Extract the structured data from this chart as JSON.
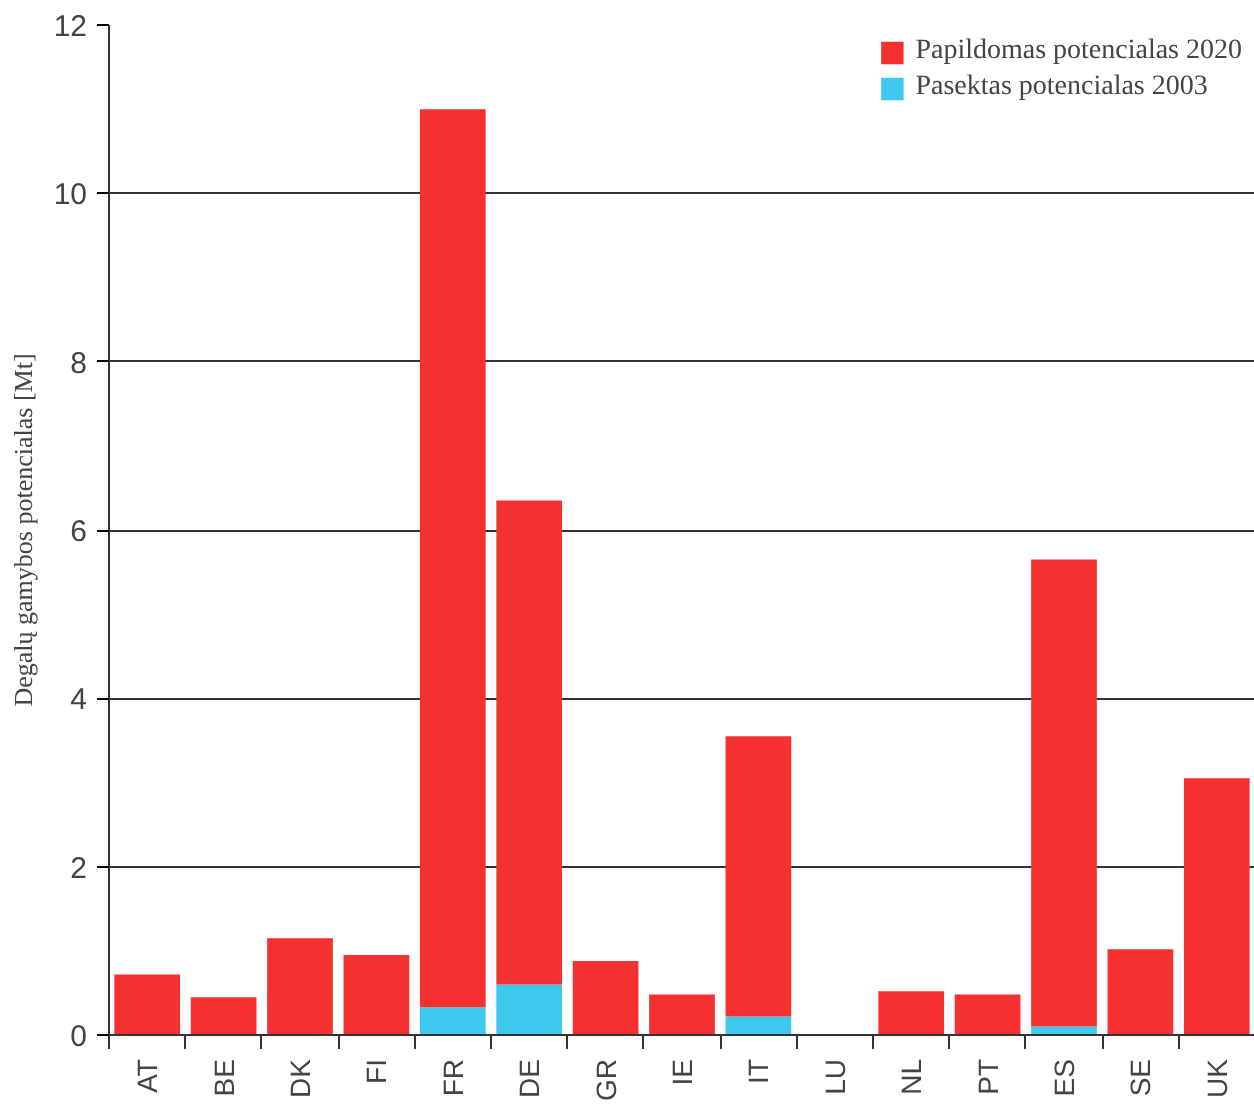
{
  "chart_data": {
    "type": "bar",
    "stacked": true,
    "ylabel": "Degalų gamybos potencialas [Mt]",
    "categories": [
      "AT",
      "BE",
      "DK",
      "FI",
      "FR",
      "DE",
      "GR",
      "IE",
      "IT",
      "LU",
      "NL",
      "PT",
      "ES",
      "SE",
      "UK"
    ],
    "series": [
      {
        "name": "Pasektas potencialas 2003",
        "color": "#3ec8ee",
        "values": [
          0,
          0,
          0,
          0,
          0.33,
          0.6,
          0,
          0,
          0.22,
          0,
          0,
          0,
          0.1,
          0,
          0
        ]
      },
      {
        "name": "Papildomas potencialas 2020",
        "color": "#f43030",
        "values": [
          0.72,
          0.45,
          1.15,
          0.95,
          10.67,
          5.75,
          0.88,
          0.48,
          3.33,
          0,
          0.52,
          0.48,
          5.55,
          1.02,
          3.05
        ]
      }
    ],
    "ylim": [
      0,
      12
    ],
    "yticks": [
      0,
      2,
      4,
      6,
      8,
      10,
      12
    ],
    "grid": "y",
    "legend": "top right"
  }
}
